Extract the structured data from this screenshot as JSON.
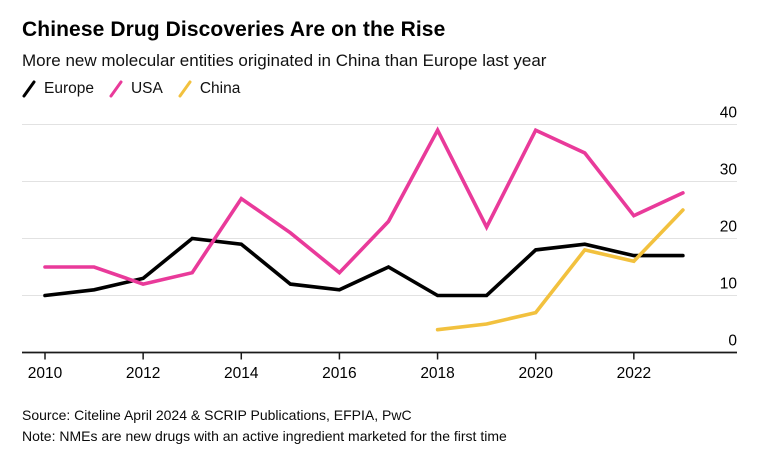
{
  "header": {
    "title": "Chinese Drug Discoveries Are on the Rise",
    "subtitle": "More new molecular entities originated in China than Europe last year"
  },
  "chart_data": {
    "type": "line",
    "x": [
      2010,
      2011,
      2012,
      2013,
      2014,
      2015,
      2016,
      2017,
      2018,
      2019,
      2020,
      2021,
      2022,
      2023
    ],
    "series": [
      {
        "name": "Europe",
        "color": "#000000",
        "values": [
          10,
          11,
          13,
          20,
          19,
          12,
          11,
          15,
          10,
          10,
          18,
          19,
          17,
          17
        ]
      },
      {
        "name": "USA",
        "color": "#e93a9a",
        "values": [
          15,
          15,
          12,
          14,
          27,
          21,
          14,
          23,
          39,
          22,
          39,
          35,
          24,
          28
        ]
      },
      {
        "name": "China",
        "color": "#f2c13e",
        "values": [
          null,
          null,
          null,
          null,
          null,
          null,
          null,
          null,
          4,
          5,
          7,
          18,
          16,
          25
        ]
      }
    ],
    "title": "Chinese Drug Discoveries Are on the Rise",
    "xlabel": "",
    "ylabel": "",
    "ylim": [
      0,
      40
    ],
    "y_ticks": [
      0,
      10,
      20,
      30,
      40
    ],
    "x_ticks": [
      2010,
      2012,
      2014,
      2016,
      2018,
      2020,
      2022
    ],
    "grid": true,
    "legend_position": "top-left",
    "y_axis_side": "right"
  },
  "legend": [
    {
      "label": "Europe",
      "color": "#000000"
    },
    {
      "label": "USA",
      "color": "#e93a9a"
    },
    {
      "label": "China",
      "color": "#f2c13e"
    }
  ],
  "footer": {
    "source": "Source: Citeline April 2024 & SCRIP Publications, EFPIA, PwC",
    "note": "Note: NMEs are new drugs with an active ingredient marketed for the first time"
  },
  "colors": {
    "background": "#ffffff",
    "text": "#000000",
    "gridline": "#e2e2e2",
    "axis": "#1a1a1a",
    "europe": "#000000",
    "usa": "#e93a9a",
    "china": "#f2c13e"
  }
}
